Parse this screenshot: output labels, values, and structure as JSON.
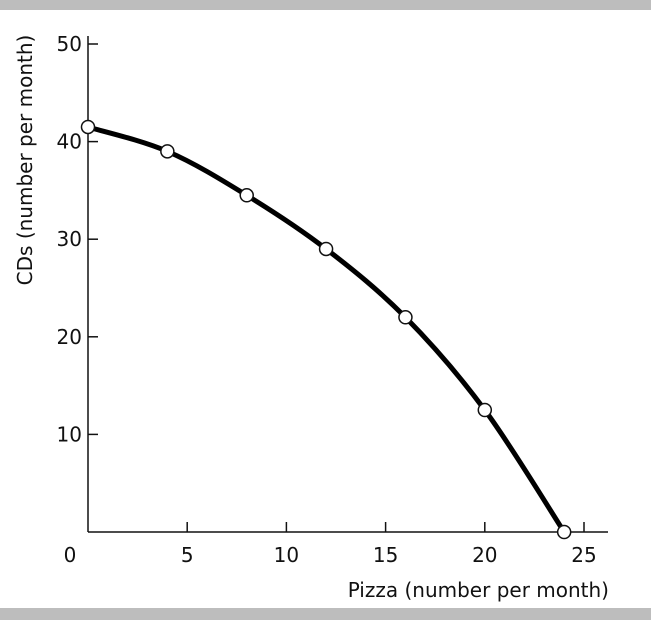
{
  "chart_data": {
    "type": "line",
    "title": "",
    "xlabel": "Pizza (number per month)",
    "ylabel": "CDs (number per month)",
    "origin_label": "0",
    "xlim": [
      0,
      25
    ],
    "ylim": [
      0,
      50
    ],
    "x_ticks": [
      5,
      10,
      15,
      20,
      25
    ],
    "y_ticks": [
      10,
      20,
      30,
      40,
      50
    ],
    "grid": false,
    "series": [
      {
        "x": [
          0,
          4,
          8,
          12,
          16,
          20,
          24
        ],
        "y": [
          41.5,
          39,
          34.5,
          29,
          22,
          12.5,
          0
        ]
      }
    ]
  }
}
